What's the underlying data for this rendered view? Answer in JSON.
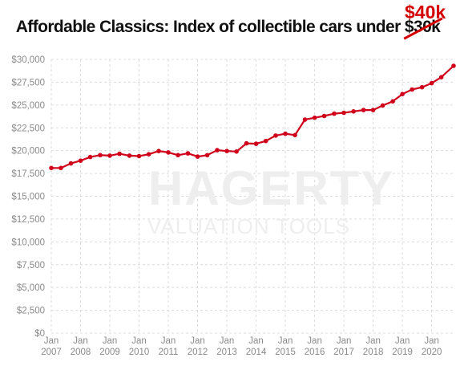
{
  "title_prefix": "Affordable Classics: Index of collectible cars under ",
  "title_struck": "$30k",
  "correction": "$40k",
  "watermark": {
    "brand": "HAGERTY",
    "registered": "®",
    "tagline": "VALUATION TOOLS"
  },
  "chart_data": {
    "type": "line",
    "title": "Affordable Classics: Index of collectible cars under $30k",
    "xlabel": "",
    "ylabel": "",
    "ylim": [
      0,
      30000
    ],
    "yticks": [
      0,
      2500,
      5000,
      7500,
      10000,
      12500,
      15000,
      17500,
      20000,
      22500,
      25000,
      27500,
      30000
    ],
    "ytick_labels": [
      "$0",
      "$2,500",
      "$5,000",
      "$7,500",
      "$10,000",
      "$12,500",
      "$15,000",
      "$17,500",
      "$20,000",
      "$22,500",
      "$25,000",
      "$27,500",
      "$30,000"
    ],
    "xlim": [
      2007.0,
      2020.75
    ],
    "xticks": [
      2007,
      2008,
      2009,
      2010,
      2011,
      2012,
      2013,
      2014,
      2015,
      2016,
      2017,
      2018,
      2019,
      2020
    ],
    "xtick_month": "Jan",
    "xtick_years": [
      "2007",
      "2008",
      "2009",
      "2010",
      "2011",
      "2012",
      "2013",
      "2014",
      "2015",
      "2016",
      "2017",
      "2018",
      "2019",
      "2020"
    ],
    "grid": {
      "x": true,
      "y": true
    },
    "series": [
      {
        "color": "#d0021b",
        "x": [
          2007.0,
          2007.33,
          2007.67,
          2008.0,
          2008.33,
          2008.67,
          2009.0,
          2009.33,
          2009.67,
          2010.0,
          2010.33,
          2010.67,
          2011.0,
          2011.33,
          2011.67,
          2012.0,
          2012.33,
          2012.67,
          2013.0,
          2013.33,
          2013.67,
          2014.0,
          2014.33,
          2014.67,
          2015.0,
          2015.33,
          2015.67,
          2016.0,
          2016.33,
          2016.67,
          2017.0,
          2017.33,
          2017.67,
          2018.0,
          2018.33,
          2018.67,
          2019.0,
          2019.33,
          2019.67,
          2020.0,
          2020.33,
          2020.75
        ],
        "y": [
          18100,
          18100,
          18600,
          18900,
          19300,
          19500,
          19450,
          19650,
          19450,
          19400,
          19600,
          19950,
          19800,
          19500,
          19700,
          19350,
          19500,
          20050,
          19950,
          19900,
          20800,
          20750,
          21050,
          21650,
          21850,
          21700,
          23400,
          23600,
          23800,
          24050,
          24150,
          24300,
          24450,
          24450,
          24950,
          25400,
          26200,
          26700,
          26950,
          27400,
          28050,
          29300
        ]
      }
    ]
  }
}
